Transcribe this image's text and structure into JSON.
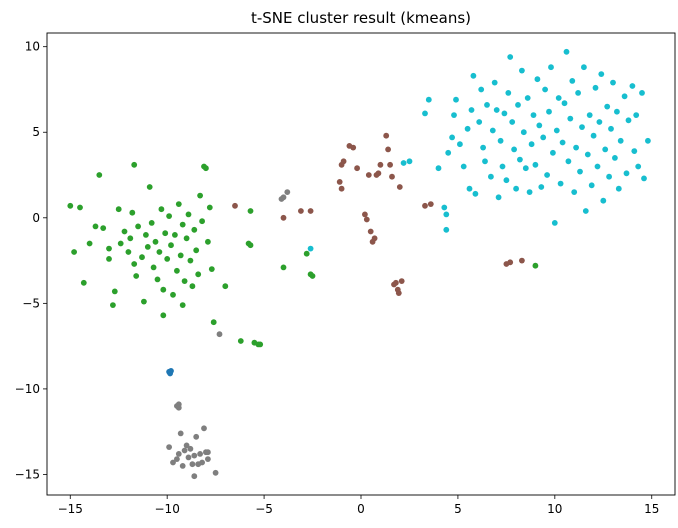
{
  "chart_data": {
    "type": "scatter",
    "title": "t-SNE cluster result (kmeans)",
    "xlabel": "",
    "ylabel": "",
    "xlim": [
      -16.2,
      16.2
    ],
    "ylim": [
      -16.2,
      10.8
    ],
    "xticks": [
      -15,
      -10,
      -5,
      0,
      5,
      10,
      15
    ],
    "yticks": [
      10,
      5,
      0,
      -5,
      -10,
      -15
    ],
    "xtick_labels": [
      "−15",
      "−10",
      "−5",
      "0",
      "5",
      "10",
      "15"
    ],
    "ytick_labels": [
      "10",
      "5",
      "0",
      "−5",
      "−10",
      "−15"
    ],
    "grid": false,
    "legend": "none",
    "series": [
      {
        "color": "#2ca02c",
        "points": [
          [
            -15,
            0.7
          ],
          [
            -14.5,
            0.6
          ],
          [
            -14.8,
            -2
          ],
          [
            -14.3,
            -3.8
          ],
          [
            -14,
            -1.5
          ],
          [
            -13.7,
            -0.5
          ],
          [
            -13.5,
            2.5
          ],
          [
            -13.3,
            -0.6
          ],
          [
            -13,
            -1.8
          ],
          [
            -13,
            -2.4
          ],
          [
            -12.8,
            -5.1
          ],
          [
            -12.7,
            -4.3
          ],
          [
            -12.5,
            0.5
          ],
          [
            -12.4,
            -1.5
          ],
          [
            -12.2,
            -0.8
          ],
          [
            -12,
            -2
          ],
          [
            -11.9,
            -1.2
          ],
          [
            -11.8,
            0.3
          ],
          [
            -11.7,
            -2.7
          ],
          [
            -11.7,
            3.1
          ],
          [
            -11.6,
            -3.4
          ],
          [
            -11.5,
            -0.5
          ],
          [
            -11.3,
            -2.3
          ],
          [
            -11.2,
            -4.9
          ],
          [
            -11.1,
            -1
          ],
          [
            -11,
            -1.7
          ],
          [
            -10.9,
            1.8
          ],
          [
            -10.8,
            -0.3
          ],
          [
            -10.7,
            -2.9
          ],
          [
            -10.6,
            -1.4
          ],
          [
            -10.5,
            -3.6
          ],
          [
            -10.4,
            -2
          ],
          [
            -10.3,
            0.5
          ],
          [
            -10.2,
            -4.2
          ],
          [
            -10.2,
            -5.7
          ],
          [
            -10.1,
            -0.9
          ],
          [
            -10,
            -2.4
          ],
          [
            -9.9,
            0.1
          ],
          [
            -9.8,
            -1.6
          ],
          [
            -9.7,
            -4.5
          ],
          [
            -9.6,
            -1
          ],
          [
            -9.5,
            -3.1
          ],
          [
            -9.4,
            0.8
          ],
          [
            -9.3,
            -2.2
          ],
          [
            -9.2,
            -0.4
          ],
          [
            -9.2,
            -5.1
          ],
          [
            -9.1,
            -3.7
          ],
          [
            -9,
            -1.2
          ],
          [
            -8.9,
            0.2
          ],
          [
            -8.8,
            -2.5
          ],
          [
            -8.7,
            -4
          ],
          [
            -8.6,
            -0.7
          ],
          [
            -8.5,
            -1.9
          ],
          [
            -8.4,
            -3.3
          ],
          [
            -8.3,
            1.3
          ],
          [
            -8.2,
            -0.2
          ],
          [
            -8.1,
            3
          ],
          [
            -8,
            2.9
          ],
          [
            -7.9,
            -1.4
          ],
          [
            -7.8,
            0.6
          ],
          [
            -7.7,
            -3
          ],
          [
            -7.6,
            -6.1
          ],
          [
            -7,
            -4
          ],
          [
            -6.2,
            -7.2
          ],
          [
            -5.8,
            -1.5
          ],
          [
            -5.7,
            -1.6
          ],
          [
            -5.7,
            0.4
          ],
          [
            -5.5,
            -7.3
          ],
          [
            -5.3,
            -7.4
          ],
          [
            -5.2,
            -7.4
          ],
          [
            -4,
            -2.9
          ],
          [
            -2.8,
            -2.1
          ],
          [
            -2.6,
            -3.3
          ],
          [
            -2.5,
            -3.4
          ],
          [
            9,
            -2.8
          ]
        ]
      },
      {
        "color": "#17becf",
        "points": [
          [
            3.3,
            6.1
          ],
          [
            3.5,
            6.9
          ],
          [
            4,
            2.9
          ],
          [
            4.3,
            0.6
          ],
          [
            4.4,
            -0.7
          ],
          [
            4.4,
            0.2
          ],
          [
            4.5,
            3.8
          ],
          [
            4.7,
            4.7
          ],
          [
            4.8,
            6
          ],
          [
            4.9,
            6.9
          ],
          [
            5.1,
            4.3
          ],
          [
            5.3,
            3
          ],
          [
            5.5,
            5.2
          ],
          [
            5.6,
            1.7
          ],
          [
            5.7,
            6.3
          ],
          [
            5.8,
            8.3
          ],
          [
            5.9,
            1.4
          ],
          [
            6.1,
            5.6
          ],
          [
            6.2,
            7.5
          ],
          [
            6.3,
            4.1
          ],
          [
            6.4,
            3.3
          ],
          [
            6.5,
            6.6
          ],
          [
            6.7,
            2.4
          ],
          [
            6.8,
            5.1
          ],
          [
            6.9,
            7.9
          ],
          [
            7,
            6.3
          ],
          [
            7.1,
            1.2
          ],
          [
            7.2,
            4.5
          ],
          [
            7.3,
            3
          ],
          [
            7.4,
            6.1
          ],
          [
            7.5,
            2.2
          ],
          [
            7.6,
            7.3
          ],
          [
            7.7,
            9.4
          ],
          [
            7.8,
            5.6
          ],
          [
            7.9,
            4
          ],
          [
            8,
            1.7
          ],
          [
            8.1,
            6.6
          ],
          [
            8.2,
            3.4
          ],
          [
            8.3,
            8.6
          ],
          [
            8.4,
            5
          ],
          [
            8.5,
            2.9
          ],
          [
            8.6,
            7
          ],
          [
            8.7,
            1.5
          ],
          [
            8.8,
            4.3
          ],
          [
            8.9,
            6
          ],
          [
            9,
            3.1
          ],
          [
            9.1,
            8.1
          ],
          [
            9.2,
            5.4
          ],
          [
            9.3,
            1.8
          ],
          [
            9.4,
            4.7
          ],
          [
            9.5,
            7.5
          ],
          [
            9.6,
            2.5
          ],
          [
            9.7,
            6.2
          ],
          [
            9.8,
            8.8
          ],
          [
            9.9,
            3.8
          ],
          [
            10,
            -0.3
          ],
          [
            10.1,
            5.1
          ],
          [
            10.2,
            7
          ],
          [
            10.3,
            2
          ],
          [
            10.4,
            4.4
          ],
          [
            10.5,
            6.7
          ],
          [
            10.6,
            9.7
          ],
          [
            10.7,
            3.3
          ],
          [
            10.8,
            5.8
          ],
          [
            10.9,
            8
          ],
          [
            11,
            1.5
          ],
          [
            11.1,
            4.1
          ],
          [
            11.2,
            7.3
          ],
          [
            11.3,
            2.7
          ],
          [
            11.4,
            5.3
          ],
          [
            11.5,
            8.8
          ],
          [
            11.6,
            0.4
          ],
          [
            11.7,
            3.7
          ],
          [
            11.8,
            6
          ],
          [
            11.9,
            1.9
          ],
          [
            12,
            4.8
          ],
          [
            12.1,
            7.6
          ],
          [
            12.2,
            3
          ],
          [
            12.3,
            5.6
          ],
          [
            12.4,
            8.4
          ],
          [
            12.5,
            1
          ],
          [
            12.6,
            4
          ],
          [
            12.7,
            6.5
          ],
          [
            12.8,
            2.4
          ],
          [
            12.9,
            5.2
          ],
          [
            13,
            7.9
          ],
          [
            13.1,
            3.5
          ],
          [
            13.2,
            6.2
          ],
          [
            13.3,
            1.7
          ],
          [
            13.4,
            4.5
          ],
          [
            13.6,
            7.1
          ],
          [
            13.7,
            2.6
          ],
          [
            13.8,
            5.7
          ],
          [
            14,
            7.7
          ],
          [
            14.1,
            3.9
          ],
          [
            14.2,
            6
          ],
          [
            14.3,
            3
          ],
          [
            14.5,
            7.3
          ],
          [
            14.6,
            2.3
          ],
          [
            14.8,
            4.5
          ],
          [
            2.2,
            3.2
          ],
          [
            2.5,
            3.3
          ],
          [
            -2.6,
            -1.8
          ]
        ]
      },
      {
        "color": "#8c564b",
        "points": [
          [
            -6.5,
            0.7
          ],
          [
            -4,
            0
          ],
          [
            -3.1,
            0.4
          ],
          [
            -2.6,
            0.4
          ],
          [
            -1.1,
            2.1
          ],
          [
            -1,
            3.1
          ],
          [
            -1,
            1.7
          ],
          [
            -0.9,
            3.3
          ],
          [
            -0.6,
            4.2
          ],
          [
            -0.4,
            4.1
          ],
          [
            -0.2,
            2.9
          ],
          [
            0.2,
            0.2
          ],
          [
            0.3,
            -0.1
          ],
          [
            0.4,
            2.5
          ],
          [
            0.5,
            -0.8
          ],
          [
            0.6,
            -1.4
          ],
          [
            0.7,
            -1.2
          ],
          [
            0.8,
            2.5
          ],
          [
            0.9,
            2.6
          ],
          [
            1,
            3.1
          ],
          [
            1.3,
            4.8
          ],
          [
            1.4,
            4
          ],
          [
            1.5,
            3.1
          ],
          [
            1.6,
            2.4
          ],
          [
            1.7,
            -3.9
          ],
          [
            1.8,
            -3.8
          ],
          [
            1.9,
            -4.2
          ],
          [
            1.95,
            -4.4
          ],
          [
            2,
            1.8
          ],
          [
            2.1,
            -3.7
          ],
          [
            3.3,
            0.7
          ],
          [
            3.6,
            0.8
          ],
          [
            7.5,
            -2.7
          ],
          [
            7.7,
            -2.6
          ],
          [
            8.3,
            -2.5
          ]
        ]
      },
      {
        "color": "#7f7f7f",
        "points": [
          [
            -7.3,
            -6.8
          ],
          [
            -4.1,
            1.1
          ],
          [
            -4,
            1.2
          ],
          [
            -3.8,
            1.5
          ],
          [
            -9.5,
            -11
          ],
          [
            -9.4,
            -10.9
          ],
          [
            -9.4,
            -11.1
          ],
          [
            -9.9,
            -13.4
          ],
          [
            -9.7,
            -14.3
          ],
          [
            -9.5,
            -14.1
          ],
          [
            -9.4,
            -13.8
          ],
          [
            -9.3,
            -12.6
          ],
          [
            -9.2,
            -14.5
          ],
          [
            -9.1,
            -13.6
          ],
          [
            -9,
            -13.3
          ],
          [
            -8.9,
            -14
          ],
          [
            -8.8,
            -13.5
          ],
          [
            -8.7,
            -14.4
          ],
          [
            -8.6,
            -13.9
          ],
          [
            -8.6,
            -15.1
          ],
          [
            -8.5,
            -12.8
          ],
          [
            -8.4,
            -14.4
          ],
          [
            -8.3,
            -13.8
          ],
          [
            -8.2,
            -14.3
          ],
          [
            -8.1,
            -12.3
          ],
          [
            -8,
            -13.7
          ],
          [
            -7.9,
            -14.1
          ],
          [
            -7.9,
            -13.7
          ],
          [
            -7.5,
            -14.9
          ]
        ]
      },
      {
        "color": "#1f77b4",
        "points": [
          [
            -9.9,
            -9
          ],
          [
            -9.85,
            -9.1
          ],
          [
            -9.8,
            -8.95
          ]
        ]
      }
    ]
  }
}
